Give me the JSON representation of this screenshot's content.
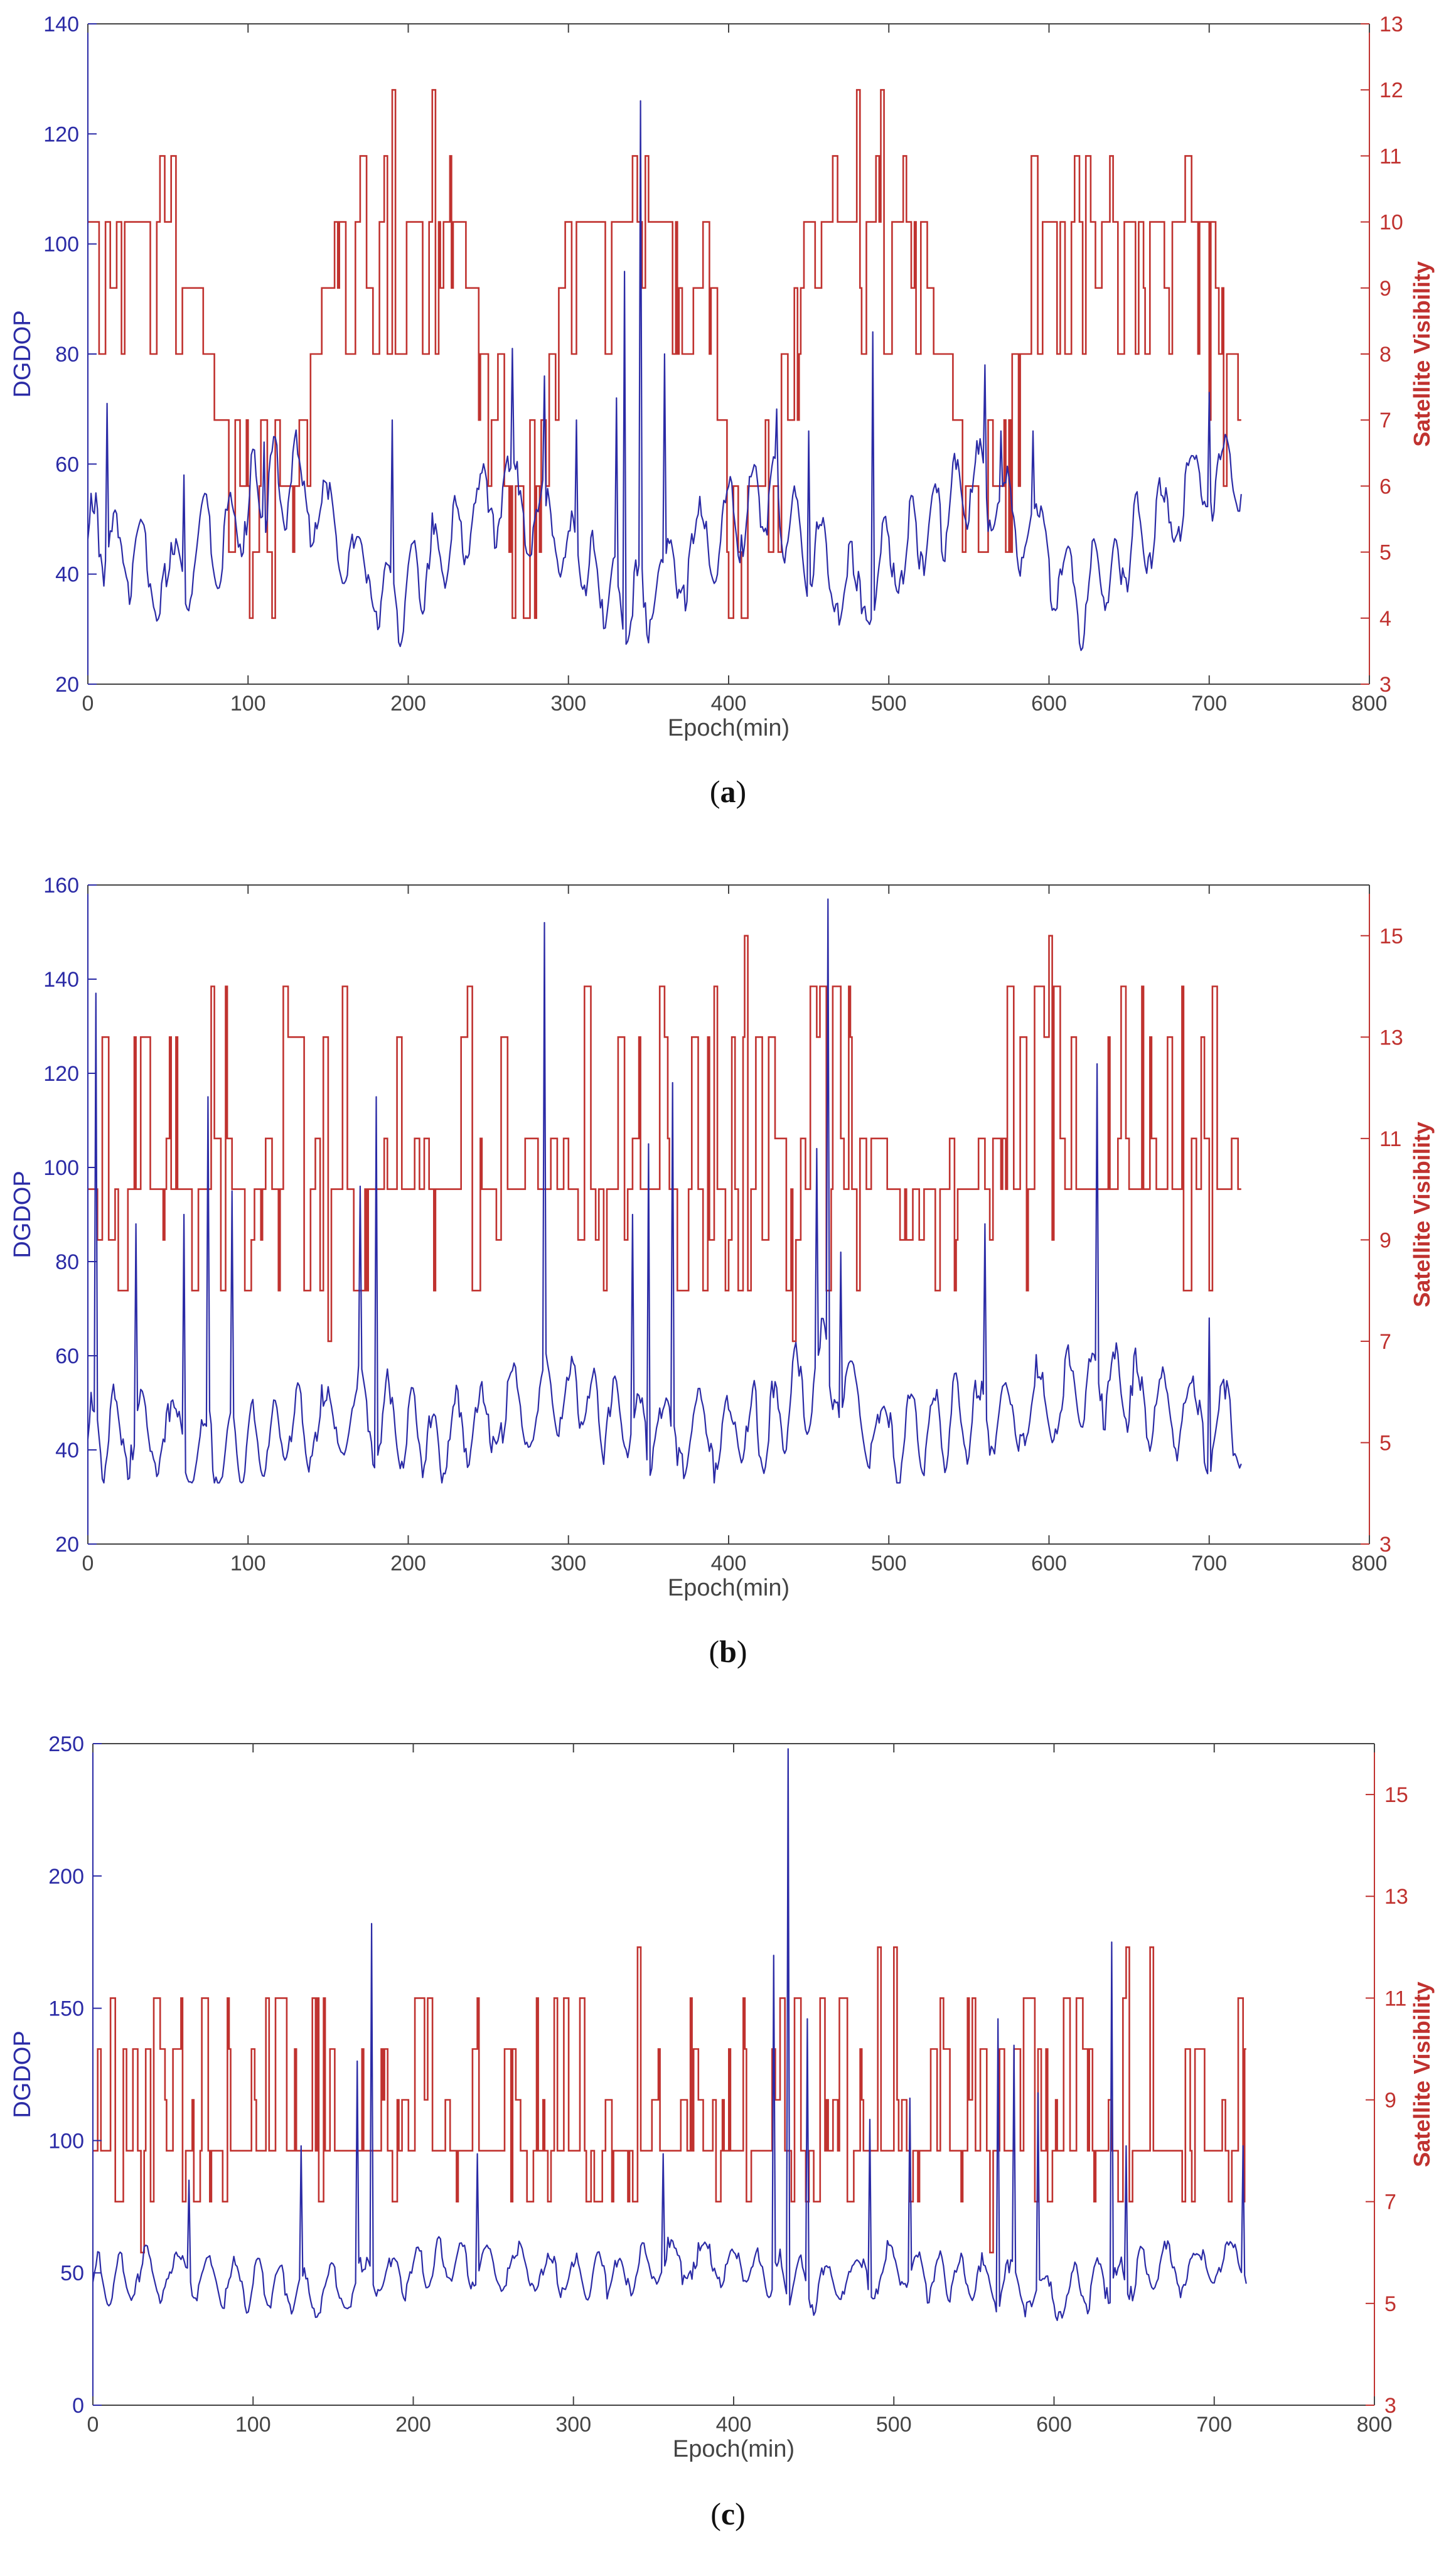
{
  "colors": {
    "dgdop": "#2b2ba6",
    "sat": "#c0322f",
    "axis": "#444444",
    "label": "#444444"
  },
  "chart_data": [
    {
      "type": "line",
      "panel_label": "a",
      "title": "",
      "xlabel": "Epoch(min)",
      "ylabel_left": "DGDOP",
      "ylabel_right": "Satellite Visibility",
      "xlim": [
        0,
        800
      ],
      "ylim_left": [
        20,
        140
      ],
      "ylim_right": [
        3,
        13
      ],
      "xticks": [
        0,
        100,
        200,
        300,
        400,
        500,
        600,
        700,
        800
      ],
      "yticks_left": [
        20,
        40,
        60,
        80,
        100,
        120,
        140
      ],
      "yticks_right": [
        3,
        4,
        5,
        6,
        7,
        8,
        9,
        10,
        11,
        12,
        13
      ],
      "grid": false,
      "n_epochs": 721,
      "series": [
        {
          "name": "DGDOP",
          "axis": "left",
          "color": "#2b2ba6",
          "baseline": [
            [
              0,
              48
            ],
            [
              50,
              38
            ],
            [
              110,
              55
            ],
            [
              130,
              57
            ],
            [
              190,
              34
            ],
            [
              260,
              56
            ],
            [
              340,
              33
            ],
            [
              420,
              55
            ],
            [
              480,
              35
            ],
            [
              540,
              54
            ],
            [
              560,
              57
            ],
            [
              620,
              36
            ],
            [
              700,
              57
            ],
            [
              721,
              58
            ]
          ],
          "oscillation_amplitude": 7,
          "spikes": [
            [
              12,
              71
            ],
            [
              60,
              58
            ],
            [
              110,
              64
            ],
            [
              190,
              68
            ],
            [
              265,
              81
            ],
            [
              285,
              76
            ],
            [
              305,
              68
            ],
            [
              330,
              72
            ],
            [
              335,
              95
            ],
            [
              345,
              126
            ],
            [
              360,
              80
            ],
            [
              430,
              70
            ],
            [
              450,
              66
            ],
            [
              490,
              84
            ],
            [
              560,
              78
            ],
            [
              570,
              66
            ],
            [
              590,
              66
            ],
            [
              700,
              73
            ]
          ],
          "range": [
            25,
            126
          ]
        },
        {
          "name": "Satellite Visibility",
          "axis": "right",
          "color": "#c0322f",
          "baseline": [
            [
              0,
              10
            ],
            [
              50,
              10
            ],
            [
              100,
              6
            ],
            [
              130,
              6
            ],
            [
              160,
              10
            ],
            [
              230,
              10
            ],
            [
              260,
              6
            ],
            [
              280,
              6
            ],
            [
              300,
              10
            ],
            [
              380,
              10
            ],
            [
              400,
              6
            ],
            [
              430,
              6
            ],
            [
              450,
              10
            ],
            [
              520,
              10
            ],
            [
              550,
              6
            ],
            [
              570,
              6
            ],
            [
              590,
              10
            ],
            [
              690,
              10
            ],
            [
              721,
              7
            ]
          ],
          "fluctuation_levels": [
            -2,
            -1,
            1
          ],
          "peaks": [
            [
              190,
              12
            ],
            [
              215,
              12
            ],
            [
              480,
              12
            ],
            [
              495,
              12
            ]
          ],
          "troughs": [
            [
              265,
              4
            ]
          ],
          "range": [
            4,
            12
          ]
        }
      ]
    },
    {
      "type": "line",
      "panel_label": "b",
      "title": "",
      "xlabel": "Epoch(min)",
      "ylabel_left": "DGDOP",
      "ylabel_right": "Satellite Visibility",
      "xlim": [
        0,
        800
      ],
      "ylim_left": [
        20,
        160
      ],
      "ylim_right": [
        3,
        16
      ],
      "xticks": [
        0,
        100,
        200,
        300,
        400,
        500,
        600,
        700,
        800
      ],
      "yticks_left": [
        20,
        40,
        60,
        80,
        100,
        120,
        140,
        160
      ],
      "yticks_right": [
        3,
        5,
        7,
        9,
        11,
        13,
        15
      ],
      "grid": false,
      "n_epochs": 721,
      "series": [
        {
          "name": "DGDOP",
          "axis": "left",
          "color": "#2b2ba6",
          "baseline": [
            [
              0,
              44
            ],
            [
              100,
              40
            ],
            [
              170,
              48
            ],
            [
              220,
              42
            ],
            [
              300,
              52
            ],
            [
              350,
              44
            ],
            [
              420,
              44
            ],
            [
              460,
              58
            ],
            [
              500,
              42
            ],
            [
              580,
              48
            ],
            [
              630,
              55
            ],
            [
              720,
              43
            ]
          ],
          "oscillation_amplitude": 8,
          "spikes": [
            [
              5,
              137
            ],
            [
              30,
              88
            ],
            [
              60,
              90
            ],
            [
              75,
              115
            ],
            [
              90,
              95
            ],
            [
              170,
              96
            ],
            [
              180,
              115
            ],
            [
              285,
              152
            ],
            [
              340,
              90
            ],
            [
              350,
              105
            ],
            [
              365,
              118
            ],
            [
              455,
              104
            ],
            [
              462,
              157
            ],
            [
              470,
              82
            ],
            [
              560,
              88
            ],
            [
              630,
              122
            ],
            [
              700,
              68
            ]
          ],
          "range": [
            33,
            157
          ]
        },
        {
          "name": "Satellite Visibility",
          "axis": "right",
          "color": "#c0322f",
          "baseline": [
            [
              0,
              10
            ],
            [
              721,
              10
            ]
          ],
          "fluctuation_levels": [
            -2,
            -1,
            1,
            3,
            4
          ],
          "peaks": [
            [
              410,
              15
            ],
            [
              600,
              15
            ]
          ],
          "troughs": [
            [
              150,
              7
            ],
            [
              440,
              7
            ]
          ],
          "range": [
            7,
            15
          ]
        }
      ]
    },
    {
      "type": "line",
      "panel_label": "c",
      "title": "",
      "xlabel": "Epoch(min)",
      "ylabel_left": "DGDOP",
      "ylabel_right": "Satellite Visibility",
      "xlim": [
        0,
        800
      ],
      "ylim_left": [
        0,
        250
      ],
      "ylim_right": [
        3,
        16
      ],
      "xticks": [
        0,
        100,
        200,
        300,
        400,
        500,
        600,
        700,
        800
      ],
      "yticks_left": [
        0,
        50,
        100,
        150,
        200,
        250
      ],
      "yticks_right": [
        3,
        5,
        7,
        9,
        11,
        13,
        15
      ],
      "grid": false,
      "n_epochs": 721,
      "series": [
        {
          "name": "DGDOP",
          "axis": "left",
          "color": "#2b2ba6",
          "baseline": [
            [
              0,
              48
            ],
            [
              60,
              50
            ],
            [
              140,
              42
            ],
            [
              220,
              55
            ],
            [
              300,
              48
            ],
            [
              380,
              55
            ],
            [
              450,
              45
            ],
            [
              500,
              52
            ],
            [
              600,
              42
            ],
            [
              650,
              50
            ],
            [
              720,
              55
            ]
          ],
          "oscillation_amplitude": 8,
          "spikes": [
            [
              60,
              85
            ],
            [
              130,
              98
            ],
            [
              165,
              130
            ],
            [
              174,
              182
            ],
            [
              240,
              95
            ],
            [
              356,
              95
            ],
            [
              425,
              170
            ],
            [
              434,
              248
            ],
            [
              446,
              146
            ],
            [
              485,
              108
            ],
            [
              510,
              116
            ],
            [
              565,
              146
            ],
            [
              575,
              136
            ],
            [
              590,
              118
            ],
            [
              636,
              175
            ],
            [
              645,
              98
            ],
            [
              718,
              98
            ]
          ],
          "range": [
            30,
            248
          ]
        },
        {
          "name": "Satellite Visibility",
          "axis": "right",
          "color": "#c0322f",
          "baseline": [
            [
              0,
              8
            ],
            [
              721,
              8
            ]
          ],
          "fluctuation_levels": [
            -1,
            1,
            2,
            3
          ],
          "peaks": [
            [
              340,
              12
            ],
            [
              490,
              12
            ],
            [
              500,
              12
            ],
            [
              645,
              12
            ],
            [
              660,
              12
            ]
          ],
          "troughs": [
            [
              30,
              6
            ],
            [
              560,
              6
            ]
          ],
          "range": [
            6,
            12
          ]
        }
      ]
    }
  ]
}
